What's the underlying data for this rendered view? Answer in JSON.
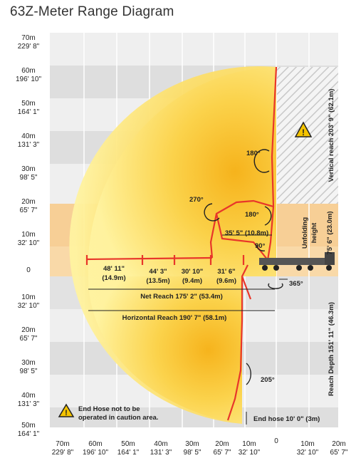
{
  "title": "63Z-Meter Range Diagram",
  "colors": {
    "zone": "#fbd24a",
    "zone_light": "#fff4a8",
    "boom": "#e8362a",
    "band_light": "#f1f1f1",
    "band_dark": "#dcdcdc",
    "unfold_band": "#f8c98c",
    "warning": "#f5c400"
  },
  "y_axis_labels": [
    {
      "m": "70m",
      "ft": "229' 8\""
    },
    {
      "m": "60m",
      "ft": "196' 10\""
    },
    {
      "m": "50m",
      "ft": "164' 1\""
    },
    {
      "m": "40m",
      "ft": "131' 3\""
    },
    {
      "m": "30m",
      "ft": "98' 5\""
    },
    {
      "m": "20m",
      "ft": "65' 7\""
    },
    {
      "m": "10m",
      "ft": "32' 10\""
    },
    {
      "m": "0",
      "ft": ""
    },
    {
      "m": "10m",
      "ft": "32' 10\""
    },
    {
      "m": "20m",
      "ft": "65' 7\""
    },
    {
      "m": "30m",
      "ft": "98' 5\""
    },
    {
      "m": "40m",
      "ft": "131' 3\""
    },
    {
      "m": "50m",
      "ft": "164' 1\""
    }
  ],
  "x_axis_labels": [
    {
      "m": "70m",
      "ft": "229' 8\""
    },
    {
      "m": "60m",
      "ft": "196' 10\""
    },
    {
      "m": "50m",
      "ft": "164' 1\""
    },
    {
      "m": "40m",
      "ft": "131' 3\""
    },
    {
      "m": "30m",
      "ft": "98' 5\""
    },
    {
      "m": "20m",
      "ft": "65' 7\""
    },
    {
      "m": "10m",
      "ft": "32' 10\""
    },
    {
      "m": "0",
      "ft": ""
    },
    {
      "m": "10m",
      "ft": "32' 10\""
    },
    {
      "m": "20m",
      "ft": "65' 7\""
    }
  ],
  "sections": [
    {
      "ft": "48' 11\"",
      "m": "(14.9m)"
    },
    {
      "ft": "44' 3\"",
      "m": "(13.5m)"
    },
    {
      "ft": "30' 10\"",
      "m": "(9.4m)"
    },
    {
      "ft": "31' 6\"",
      "m": "(9.6m)"
    }
  ],
  "angles": {
    "a180_top": "180°",
    "a270": "270°",
    "a180_mid": "180°",
    "a90": "90°",
    "a365": "365°",
    "a205": "205°"
  },
  "annotations": {
    "reach_35": "35' 5\" (10.8m)",
    "net_reach": "Net Reach 175' 2\" (53.4m)",
    "horizontal_reach": "Horizontal Reach 190' 7\" (58.1m)",
    "end_hose": "End hose 10' 0\" (3m)",
    "vertical_reach": "Vertical reach 203' 9\" (62.1m)",
    "unfolding_height_title": "Unfolding",
    "unfolding_height_word": "height",
    "unfolding_height_value": "75' 6\" (23.0m)",
    "reach_depth": "Reach Depth 151' 11\" (46.3m)",
    "note_line1": "End Hose not to be",
    "note_line2": "operated in caution area."
  }
}
